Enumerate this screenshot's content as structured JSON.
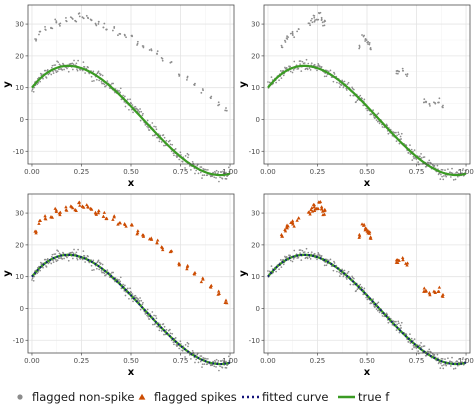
{
  "chart_data": {
    "type": "scatter",
    "colors": {
      "non_spike": "#8c8c8c",
      "spike": "#cc4c02",
      "fitted": "#14147a",
      "true_f": "#3a9b23",
      "grid_major": "#e4e4e4",
      "grid_minor": "#f2f2f2",
      "border": "#4d4d4d",
      "background": "#ffffff"
    },
    "grid": true,
    "legend": {
      "position": "bottom",
      "items": [
        {
          "key": "non_spike",
          "label": "flagged non-spike",
          "shape": "circle"
        },
        {
          "key": "spike",
          "label": "flagged spikes",
          "shape": "triangle"
        },
        {
          "key": "fitted",
          "label": "fitted curve",
          "shape": "dotted-line"
        },
        {
          "key": "true_f",
          "label": "true f",
          "shape": "line"
        }
      ]
    },
    "panels": [
      {
        "id": "top-left",
        "xlabel": "x",
        "ylabel": "y",
        "xlim": [
          -0.02,
          1.02
        ],
        "ylim": [
          -14,
          36
        ],
        "xticks": [
          "0.00",
          "0.25",
          "0.50",
          "0.75",
          "1.00"
        ],
        "yticks": [
          "-10",
          "0",
          "10",
          "20",
          "30"
        ],
        "show_true_f": true,
        "show_fitted": false,
        "spike_style": "grey",
        "noise_seed": 11,
        "spikes": [
          [
            0.02,
            25
          ],
          [
            0.04,
            27
          ],
          [
            0.07,
            28.5
          ],
          [
            0.1,
            29
          ],
          [
            0.12,
            31
          ],
          [
            0.14,
            30
          ],
          [
            0.17,
            31.5
          ],
          [
            0.2,
            32
          ],
          [
            0.22,
            31
          ],
          [
            0.24,
            33
          ],
          [
            0.26,
            32.5
          ],
          [
            0.28,
            32
          ],
          [
            0.3,
            31
          ],
          [
            0.32,
            30
          ],
          [
            0.34,
            30.5
          ],
          [
            0.36,
            29.5
          ],
          [
            0.38,
            28
          ],
          [
            0.41,
            28.5
          ],
          [
            0.44,
            27
          ],
          [
            0.47,
            26
          ],
          [
            0.5,
            26.5
          ],
          [
            0.53,
            24
          ],
          [
            0.56,
            23
          ],
          [
            0.6,
            22
          ],
          [
            0.63,
            21
          ],
          [
            0.66,
            19
          ],
          [
            0.7,
            18
          ],
          [
            0.74,
            14
          ],
          [
            0.78,
            13
          ],
          [
            0.82,
            11
          ],
          [
            0.86,
            9
          ],
          [
            0.9,
            7
          ],
          [
            0.94,
            5
          ],
          [
            0.98,
            3
          ]
        ]
      },
      {
        "id": "top-right",
        "xlabel": "x",
        "ylabel": "y",
        "xlim": [
          -0.02,
          1.02
        ],
        "ylim": [
          -14,
          36
        ],
        "xticks": [
          "0.00",
          "0.25",
          "0.50",
          "0.75",
          "1.00"
        ],
        "yticks": [
          "-10",
          "0",
          "10",
          "20",
          "30"
        ],
        "show_true_f": true,
        "show_fitted": false,
        "spike_style": "grey",
        "noise_seed": 23,
        "spikes": [
          [
            0.07,
            23
          ],
          [
            0.09,
            25
          ],
          [
            0.1,
            26
          ],
          [
            0.12,
            27
          ],
          [
            0.13,
            26.5
          ],
          [
            0.15,
            28
          ],
          [
            0.21,
            30
          ],
          [
            0.22,
            31
          ],
          [
            0.23,
            32.5
          ],
          [
            0.24,
            31
          ],
          [
            0.25,
            32
          ],
          [
            0.26,
            33
          ],
          [
            0.27,
            31.5
          ],
          [
            0.28,
            30
          ],
          [
            0.29,
            31
          ],
          [
            0.46,
            23
          ],
          [
            0.48,
            26
          ],
          [
            0.49,
            25
          ],
          [
            0.5,
            24.5
          ],
          [
            0.51,
            24
          ],
          [
            0.52,
            22.5
          ],
          [
            0.65,
            15
          ],
          [
            0.66,
            14.5
          ],
          [
            0.68,
            15.5
          ],
          [
            0.7,
            14
          ],
          [
            0.79,
            6
          ],
          [
            0.8,
            5
          ],
          [
            0.82,
            4.5
          ],
          [
            0.84,
            5.5
          ],
          [
            0.86,
            6
          ],
          [
            0.88,
            4
          ]
        ]
      },
      {
        "id": "bottom-left",
        "xlabel": "x",
        "ylabel": "y",
        "xlim": [
          -0.02,
          1.02
        ],
        "ylim": [
          -14,
          36
        ],
        "xticks": [
          "0.00",
          "0.25",
          "0.50",
          "0.75",
          "1.00"
        ],
        "yticks": [
          "-10",
          "0",
          "10",
          "20",
          "30"
        ],
        "show_true_f": true,
        "show_fitted": true,
        "spike_style": "flagged",
        "noise_seed": 11,
        "spikes": [
          [
            0.02,
            24
          ],
          [
            0.04,
            27
          ],
          [
            0.07,
            28.5
          ],
          [
            0.1,
            29
          ],
          [
            0.12,
            31
          ],
          [
            0.14,
            30
          ],
          [
            0.17,
            31.5
          ],
          [
            0.2,
            32
          ],
          [
            0.22,
            31
          ],
          [
            0.24,
            33
          ],
          [
            0.26,
            32.5
          ],
          [
            0.28,
            32
          ],
          [
            0.3,
            31
          ],
          [
            0.32,
            30
          ],
          [
            0.34,
            30.5
          ],
          [
            0.36,
            29.5
          ],
          [
            0.38,
            28
          ],
          [
            0.41,
            28.5
          ],
          [
            0.44,
            27
          ],
          [
            0.47,
            26
          ],
          [
            0.5,
            26.5
          ],
          [
            0.53,
            24
          ],
          [
            0.56,
            23
          ],
          [
            0.6,
            22
          ],
          [
            0.63,
            21
          ],
          [
            0.66,
            19
          ],
          [
            0.7,
            18
          ],
          [
            0.74,
            14
          ],
          [
            0.78,
            13
          ],
          [
            0.82,
            11
          ],
          [
            0.86,
            9
          ],
          [
            0.9,
            7
          ],
          [
            0.94,
            5
          ],
          [
            0.98,
            2
          ]
        ]
      },
      {
        "id": "bottom-right",
        "xlabel": "x",
        "ylabel": "y",
        "xlim": [
          -0.02,
          1.02
        ],
        "ylim": [
          -14,
          36
        ],
        "xticks": [
          "0.00",
          "0.25",
          "0.50",
          "0.75",
          "1.00"
        ],
        "yticks": [
          "-10",
          "0",
          "10",
          "20",
          "30"
        ],
        "show_true_f": true,
        "show_fitted": true,
        "spike_style": "flagged",
        "noise_seed": 23,
        "spikes": [
          [
            0.07,
            23
          ],
          [
            0.09,
            25
          ],
          [
            0.1,
            26
          ],
          [
            0.12,
            27
          ],
          [
            0.13,
            26.5
          ],
          [
            0.15,
            28
          ],
          [
            0.21,
            30
          ],
          [
            0.22,
            31
          ],
          [
            0.23,
            32.5
          ],
          [
            0.24,
            31
          ],
          [
            0.25,
            32
          ],
          [
            0.26,
            33
          ],
          [
            0.27,
            31.5
          ],
          [
            0.28,
            30
          ],
          [
            0.29,
            31
          ],
          [
            0.46,
            23
          ],
          [
            0.48,
            26
          ],
          [
            0.49,
            25
          ],
          [
            0.5,
            24.5
          ],
          [
            0.51,
            24
          ],
          [
            0.52,
            22.5
          ],
          [
            0.65,
            15
          ],
          [
            0.66,
            14.5
          ],
          [
            0.68,
            15.5
          ],
          [
            0.7,
            14
          ],
          [
            0.79,
            6
          ],
          [
            0.8,
            5
          ],
          [
            0.82,
            4.5
          ],
          [
            0.84,
            5.5
          ],
          [
            0.86,
            6
          ],
          [
            0.88,
            4
          ]
        ]
      }
    ]
  }
}
